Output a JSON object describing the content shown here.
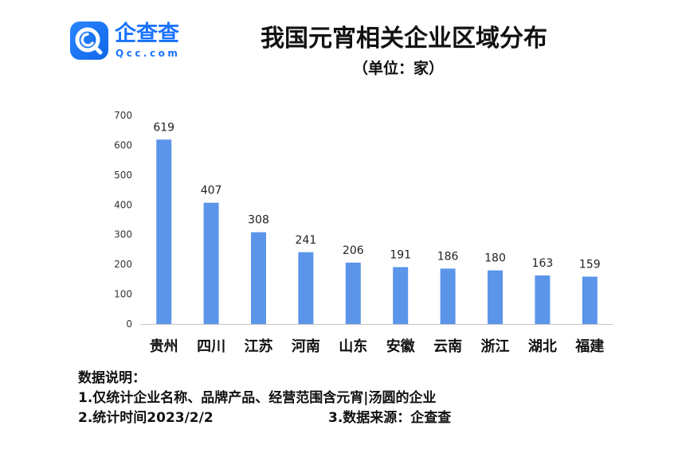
{
  "logo": {
    "name": "企查查",
    "sub": "Qcc.com"
  },
  "colors": {
    "bar": "#5b95ea",
    "brand": "#1a73ff",
    "axis": "#c8c8c8"
  },
  "notes": {
    "heading": "数据说明：",
    "line1": "1.仅统计企业名称、品牌产品、经营范围含元宵|汤圆的企业",
    "line2": "2.统计时间2023/2/2",
    "line3": "3.数据来源：企查查"
  },
  "chart_data": {
    "type": "bar",
    "title": "我国元宵相关企业区域分布",
    "subtitle": "（单位：家）",
    "categories": [
      "贵州",
      "四川",
      "江苏",
      "河南",
      "山东",
      "安徽",
      "云南",
      "浙江",
      "湖北",
      "福建"
    ],
    "values": [
      619,
      407,
      308,
      241,
      206,
      191,
      186,
      180,
      163,
      159
    ],
    "yticks": [
      0,
      100,
      200,
      300,
      400,
      500,
      600,
      700
    ],
    "ylim": [
      0,
      700
    ],
    "grid": false,
    "legend": "none"
  }
}
